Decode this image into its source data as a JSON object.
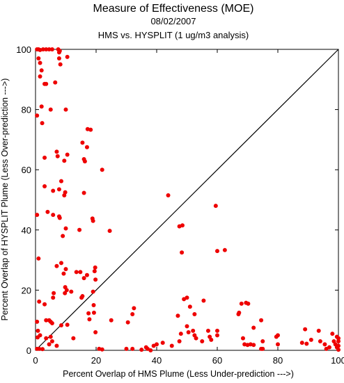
{
  "chart_data": {
    "type": "scatter",
    "title": "Measure of Effectiveness (MOE)",
    "subtitle": "08/02/2007",
    "subtitle2": "HMS vs. HYSPLIT  (1 ug/m3 analysis)",
    "xlabel": "Percent Overlap of HMS Plume (Less Under-prediction --->)",
    "ylabel": "Percent Overlap of HYSPLIT Plume (Less Over-prediction --->)",
    "xlim": [
      0,
      100
    ],
    "ylim": [
      0,
      100
    ],
    "xticks": [
      "0",
      "20",
      "40",
      "60",
      "80",
      "100"
    ],
    "yticks": [
      "0",
      "20",
      "40",
      "60",
      "80",
      "100"
    ],
    "grid": false,
    "reference_line": {
      "from": [
        0,
        0
      ],
      "to": [
        100,
        100
      ],
      "color": "#000000"
    },
    "point_color": "#ee0000",
    "series": [
      {
        "points": [
          [
            0.5,
            100
          ],
          [
            1,
            100
          ],
          [
            1.5,
            99.8
          ],
          [
            2.5,
            100
          ],
          [
            3.5,
            100
          ],
          [
            4.5,
            100
          ],
          [
            5.5,
            100
          ],
          [
            7.5,
            100
          ],
          [
            8,
            99.5
          ],
          [
            7.8,
            99
          ],
          [
            1,
            97
          ],
          [
            1.5,
            95.5
          ],
          [
            2,
            93
          ],
          [
            1.5,
            91
          ],
          [
            3,
            88.5
          ],
          [
            3.5,
            88.5
          ],
          [
            6.5,
            89
          ],
          [
            10.5,
            97.5
          ],
          [
            7.8,
            97
          ],
          [
            8.2,
            95
          ],
          [
            2,
            81
          ],
          [
            0.5,
            78
          ],
          [
            2.2,
            75.5
          ],
          [
            5,
            80
          ],
          [
            10,
            80
          ],
          [
            17.2,
            73.5
          ],
          [
            18.2,
            73.3
          ],
          [
            15.5,
            69
          ],
          [
            17,
            67.5
          ],
          [
            7,
            66
          ],
          [
            7.3,
            64.5
          ],
          [
            10.5,
            65
          ],
          [
            3,
            64
          ],
          [
            9.5,
            63
          ],
          [
            16,
            63.5
          ],
          [
            16.3,
            62.8
          ],
          [
            22,
            60
          ],
          [
            8.5,
            56.2
          ],
          [
            3,
            54.5
          ],
          [
            5.8,
            53
          ],
          [
            7.8,
            53.5
          ],
          [
            9.8,
            52.5
          ],
          [
            9.5,
            51.5
          ],
          [
            16,
            52.3
          ],
          [
            0.5,
            45
          ],
          [
            4,
            46
          ],
          [
            5.8,
            45
          ],
          [
            7.8,
            44.5
          ],
          [
            8,
            44
          ],
          [
            18.8,
            43.8
          ],
          [
            19,
            43
          ],
          [
            10,
            40.5
          ],
          [
            14.5,
            40
          ],
          [
            24.5,
            39.7
          ],
          [
            9,
            38
          ],
          [
            1,
            30.5
          ],
          [
            8.5,
            29
          ],
          [
            7,
            28
          ],
          [
            10,
            27
          ],
          [
            19.7,
            27.5
          ],
          [
            19.5,
            26.3
          ],
          [
            13.5,
            26
          ],
          [
            14.8,
            26
          ],
          [
            17,
            25
          ],
          [
            9.3,
            25.5
          ],
          [
            16,
            24
          ],
          [
            19.8,
            23.5
          ],
          [
            9.8,
            21
          ],
          [
            10.3,
            20
          ],
          [
            11.8,
            19.5
          ],
          [
            9.7,
            19
          ],
          [
            6,
            19
          ],
          [
            5.8,
            17.5
          ],
          [
            15.5,
            18
          ],
          [
            15.2,
            17.5
          ],
          [
            19,
            19.5
          ],
          [
            3,
            15.3
          ],
          [
            1.2,
            16.2
          ],
          [
            19.2,
            15
          ],
          [
            19.3,
            12.5
          ],
          [
            17.5,
            12.3
          ],
          [
            17.8,
            10.3
          ],
          [
            25,
            10
          ],
          [
            3.5,
            10
          ],
          [
            4.5,
            10
          ],
          [
            5,
            9.5
          ],
          [
            5.5,
            9
          ],
          [
            8.5,
            8.3
          ],
          [
            10.5,
            8.5
          ],
          [
            0.5,
            9.5
          ],
          [
            0.8,
            6.5
          ],
          [
            1.5,
            5
          ],
          [
            0.7,
            4.3
          ],
          [
            3.5,
            4
          ],
          [
            5,
            4.5
          ],
          [
            12.5,
            4
          ],
          [
            19.8,
            6
          ],
          [
            5.5,
            3
          ],
          [
            4.5,
            2
          ],
          [
            7,
            1.5
          ],
          [
            0.5,
            0.5
          ],
          [
            1.2,
            0.5
          ],
          [
            2.3,
            0.4
          ],
          [
            21,
            0.5
          ],
          [
            22,
            0.3
          ],
          [
            30.5,
            9.3
          ],
          [
            32,
            12
          ],
          [
            32.5,
            14
          ],
          [
            43.8,
            51.5
          ],
          [
            48.5,
            41.5
          ],
          [
            47.5,
            41.2
          ],
          [
            48.3,
            32.5
          ],
          [
            59.5,
            48
          ],
          [
            60,
            33
          ],
          [
            62.5,
            33.3
          ],
          [
            49,
            17
          ],
          [
            50,
            17.5
          ],
          [
            51,
            14.5
          ],
          [
            55.5,
            16.5
          ],
          [
            52.5,
            12
          ],
          [
            47,
            11.5
          ],
          [
            48,
            5.5
          ],
          [
            47.5,
            3
          ],
          [
            45,
            1.5
          ],
          [
            42,
            2.5
          ],
          [
            40,
            2
          ],
          [
            39,
            1.5
          ],
          [
            37,
            0.5
          ],
          [
            36.5,
            1
          ],
          [
            35,
            0.2
          ],
          [
            38,
            0
          ],
          [
            30,
            0.5
          ],
          [
            32,
            0.5
          ],
          [
            50,
            8
          ],
          [
            52,
            6.5
          ],
          [
            50.5,
            6
          ],
          [
            52.5,
            5
          ],
          [
            53,
            4
          ],
          [
            57.5,
            4.5
          ],
          [
            60,
            5
          ],
          [
            58,
            3.5
          ],
          [
            57,
            6.5
          ],
          [
            55,
            3
          ],
          [
            60,
            6.5
          ],
          [
            67,
            12
          ],
          [
            67.2,
            12.5
          ],
          [
            68,
            15.5
          ],
          [
            69.5,
            15.8
          ],
          [
            70.2,
            15.5
          ],
          [
            74.5,
            10
          ],
          [
            75,
            3
          ],
          [
            72,
            7.5
          ],
          [
            68.5,
            4
          ],
          [
            69,
            2
          ],
          [
            70,
            1.8
          ],
          [
            71,
            2
          ],
          [
            72,
            1.8
          ],
          [
            75,
            0.5
          ],
          [
            74.5,
            0.5
          ],
          [
            80,
            5
          ],
          [
            79.5,
            4.5
          ],
          [
            80,
            2
          ],
          [
            88,
            2.5
          ],
          [
            89.5,
            2.2
          ],
          [
            91,
            3.5
          ],
          [
            93.5,
            6.5
          ],
          [
            94,
            3
          ],
          [
            95.5,
            2
          ],
          [
            97,
            1
          ],
          [
            96,
            0.5
          ],
          [
            98,
            5.5
          ],
          [
            98.5,
            3
          ],
          [
            99,
            2
          ],
          [
            99.5,
            1
          ],
          [
            100,
            0.2
          ],
          [
            100,
            1.5
          ],
          [
            100,
            3
          ],
          [
            100,
            4
          ],
          [
            99.5,
            4.5
          ],
          [
            89,
            7
          ]
        ]
      }
    ]
  }
}
